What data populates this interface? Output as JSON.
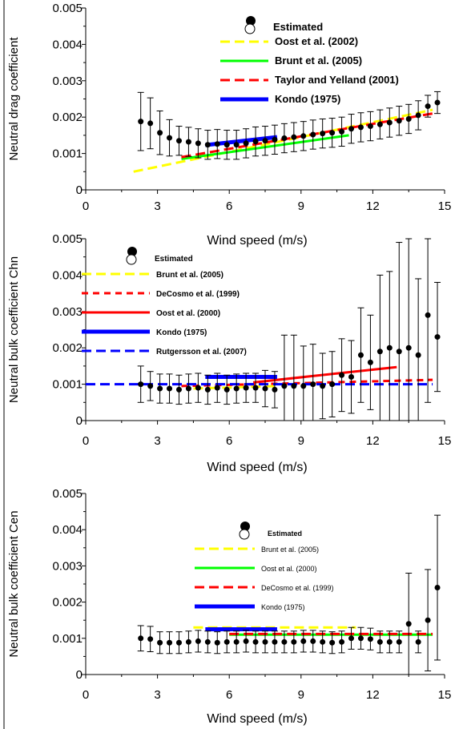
{
  "chart_data": [
    {
      "type": "scatter",
      "xlabel": "Wind speed  (m/s)",
      "ylabel": "Neutral drag coefficient",
      "xlim": [
        0,
        15
      ],
      "ylim": [
        0,
        0.005
      ],
      "xticks": [
        "0",
        "3",
        "6",
        "9",
        "12",
        "15"
      ],
      "yticks": [
        "0",
        "0.001",
        "0.002",
        "0.003",
        "0.004",
        "0.005"
      ],
      "legend_position": "top-right",
      "points": {
        "name": "Estimated",
        "x": [
          2.3,
          2.7,
          3.1,
          3.5,
          3.9,
          4.3,
          4.7,
          5.1,
          5.5,
          5.9,
          6.3,
          6.7,
          7.1,
          7.5,
          7.9,
          8.3,
          8.7,
          9.1,
          9.5,
          9.9,
          10.3,
          10.7,
          11.1,
          11.5,
          11.9,
          12.3,
          12.7,
          13.1,
          13.5,
          13.9,
          14.3,
          14.7
        ],
        "y": [
          0.00188,
          0.00183,
          0.00157,
          0.00143,
          0.00135,
          0.00132,
          0.00128,
          0.00124,
          0.00126,
          0.00124,
          0.00124,
          0.00128,
          0.00133,
          0.00135,
          0.00138,
          0.00142,
          0.00145,
          0.00148,
          0.00152,
          0.00155,
          0.00157,
          0.0016,
          0.00168,
          0.00172,
          0.00175,
          0.0018,
          0.00185,
          0.0019,
          0.00195,
          0.00205,
          0.0023,
          0.0024
        ],
        "err": [
          0.0008,
          0.0007,
          0.0006,
          0.0005,
          0.0004,
          0.0004,
          0.0004,
          0.0004,
          0.0004,
          0.0004,
          0.0004,
          0.0004,
          0.0004,
          0.0004,
          0.0004,
          0.0004,
          0.0004,
          0.0004,
          0.0004,
          0.0004,
          0.0004,
          0.0004,
          0.0004,
          0.0004,
          0.0004,
          0.0004,
          0.0004,
          0.0004,
          0.0004,
          0.0004,
          0.0003,
          0.0003
        ]
      },
      "series": [
        {
          "name": "Oost et al. (2002)",
          "color": "#ffff00",
          "style": "dashed",
          "x": [
            2,
            14.5
          ],
          "y": [
            0.0005,
            0.0022
          ]
        },
        {
          "name": "Brunt et al. (2005)",
          "color": "#00ff00",
          "style": "solid",
          "x": [
            4,
            11
          ],
          "y": [
            0.00085,
            0.0015
          ]
        },
        {
          "name": "Taylor and Yelland (2001)",
          "color": "#ff0000",
          "style": "dashed",
          "x": [
            4,
            14.5
          ],
          "y": [
            0.0009,
            0.0021
          ]
        },
        {
          "name": "Kondo (1975)",
          "color": "#0000ff",
          "style": "solid",
          "x": [
            5,
            8
          ],
          "y": [
            0.00123,
            0.00145
          ]
        }
      ]
    },
    {
      "type": "scatter",
      "xlabel": "Wind speed  (m/s)",
      "ylabel": "Neutral bulk coefficient Chn",
      "xlim": [
        0,
        15
      ],
      "ylim": [
        0,
        0.005
      ],
      "xticks": [
        "0",
        "3",
        "6",
        "9",
        "12",
        "15"
      ],
      "yticks": [
        "0",
        "0.001",
        "0.002",
        "0.003",
        "0.004",
        "0.005"
      ],
      "legend_position": "top-left",
      "points": {
        "name": "Estimated",
        "x": [
          2.3,
          2.7,
          3.1,
          3.5,
          3.9,
          4.3,
          4.7,
          5.1,
          5.5,
          5.9,
          6.3,
          6.7,
          7.1,
          7.5,
          7.9,
          8.3,
          8.7,
          9.1,
          9.5,
          9.9,
          10.3,
          10.7,
          11.1,
          11.5,
          11.9,
          12.3,
          12.7,
          13.1,
          13.5,
          13.9,
          14.3,
          14.7
        ],
        "y": [
          0.001,
          0.00095,
          0.00088,
          0.00088,
          0.00085,
          0.00088,
          0.0009,
          0.00085,
          0.0009,
          0.00085,
          0.00088,
          0.0009,
          0.0009,
          0.00088,
          0.00085,
          0.00095,
          0.00095,
          0.00095,
          0.001,
          0.00095,
          0.001,
          0.00125,
          0.0012,
          0.0018,
          0.0016,
          0.0019,
          0.002,
          0.0019,
          0.002,
          0.0018,
          0.0029,
          0.0023
        ],
        "err": [
          0.0005,
          0.0004,
          0.0004,
          0.0004,
          0.0004,
          0.0004,
          0.0004,
          0.0004,
          0.0004,
          0.0004,
          0.0004,
          0.0004,
          0.0004,
          0.0005,
          0.0005,
          0.0014,
          0.0014,
          0.0011,
          0.0011,
          0.0009,
          0.0009,
          0.001,
          0.001,
          0.0013,
          0.0013,
          0.0021,
          0.0021,
          0.003,
          0.003,
          0.0021,
          0.0024,
          0.0015
        ]
      },
      "series": [
        {
          "name": "Brunt et al. (2005)",
          "color": "#ffff00",
          "style": "dashed",
          "x": [
            4.5,
            8
          ],
          "y": [
            0.00088,
            0.00095
          ]
        },
        {
          "name": "DeCosmo et al. (1999)",
          "color": "#ff0000",
          "style": "dotted",
          "x": [
            4,
            14.5
          ],
          "y": [
            0.00095,
            0.00112
          ]
        },
        {
          "name": "Oost et al. (2000)",
          "color": "#ff0000",
          "style": "solid",
          "x": [
            7,
            13
          ],
          "y": [
            0.00105,
            0.00147
          ]
        },
        {
          "name": "Kondo (1975)",
          "color": "#0000ff",
          "style": "solid",
          "x": [
            5,
            8
          ],
          "y": [
            0.0012,
            0.0012
          ]
        },
        {
          "name": "Rutgersson et al. (2007)",
          "color": "#0000ff",
          "style": "dashed",
          "x": [
            0,
            14.5
          ],
          "y": [
            0.001,
            0.001
          ]
        }
      ]
    },
    {
      "type": "scatter",
      "xlabel": "Wind speed  (m/s)",
      "ylabel": "Neutral bulk coefficient Cen",
      "xlim": [
        0,
        15
      ],
      "ylim": [
        0,
        0.005
      ],
      "xticks": [
        "0",
        "3",
        "6",
        "9",
        "12",
        "15"
      ],
      "yticks": [
        "0",
        "0.001",
        "0.002",
        "0.003",
        "0.004",
        "0.005"
      ],
      "legend_position": "top-center",
      "points": {
        "name": "Estimated",
        "x": [
          2.3,
          2.7,
          3.1,
          3.5,
          3.9,
          4.3,
          4.7,
          5.1,
          5.5,
          5.9,
          6.3,
          6.7,
          7.1,
          7.5,
          7.9,
          8.3,
          8.7,
          9.1,
          9.5,
          9.9,
          10.3,
          10.7,
          11.1,
          11.5,
          11.9,
          12.3,
          12.7,
          13.1,
          13.5,
          13.9,
          14.3,
          14.7
        ],
        "y": [
          0.001,
          0.00098,
          0.00088,
          0.00088,
          0.00088,
          0.0009,
          0.00092,
          0.0009,
          0.00088,
          0.0009,
          0.0009,
          0.00092,
          0.0009,
          0.0009,
          0.0009,
          0.0009,
          0.0009,
          0.00092,
          0.00092,
          0.0009,
          0.00088,
          0.0009,
          0.001,
          0.001,
          0.00098,
          0.0009,
          0.0009,
          0.0009,
          0.0014,
          0.0009,
          0.0015,
          0.0024
        ],
        "err": [
          0.00035,
          0.00035,
          0.0003,
          0.0003,
          0.0003,
          0.0003,
          0.0003,
          0.0003,
          0.0003,
          0.0003,
          0.0003,
          0.0003,
          0.0003,
          0.0003,
          0.0003,
          0.0003,
          0.0003,
          0.0003,
          0.0003,
          0.0003,
          0.0003,
          0.0003,
          0.0003,
          0.0003,
          0.0003,
          0.0003,
          0.0003,
          0.0003,
          0.0014,
          0.0003,
          0.0014,
          0.002
        ]
      },
      "series": [
        {
          "name": "Brunt et al. (2005)",
          "color": "#ffff00",
          "style": "dashed",
          "x": [
            4.5,
            11.3
          ],
          "y": [
            0.0013,
            0.0013
          ]
        },
        {
          "name": "Oost et al. (2000)",
          "color": "#00ff00",
          "style": "solid",
          "x": [
            6,
            14.5
          ],
          "y": [
            0.0011,
            0.0011
          ]
        },
        {
          "name": "DeCosmo et al. (1999)",
          "color": "#ff0000",
          "style": "dashed",
          "x": [
            6,
            14.5
          ],
          "y": [
            0.00112,
            0.00112
          ]
        },
        {
          "name": "Kondo (1975)",
          "color": "#0000ff",
          "style": "solid",
          "x": [
            5,
            8
          ],
          "y": [
            0.00125,
            0.00125
          ]
        }
      ]
    }
  ]
}
